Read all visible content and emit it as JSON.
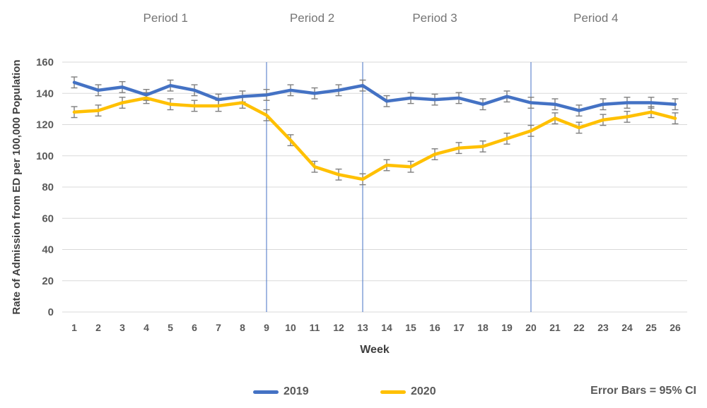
{
  "chart_data": {
    "type": "line",
    "title": "",
    "xlabel": "Week",
    "ylabel": "Rate of Admission from ED per 100,000 Population",
    "x": [
      1,
      2,
      3,
      4,
      5,
      6,
      7,
      8,
      9,
      10,
      11,
      12,
      13,
      14,
      15,
      16,
      17,
      18,
      19,
      20,
      21,
      22,
      23,
      24,
      25,
      26
    ],
    "ylim": [
      0,
      160
    ],
    "ytick_step": 20,
    "grid": true,
    "series": [
      {
        "name": "2019",
        "color": "#4472C4",
        "ci": 3.5,
        "values": [
          147,
          142,
          144,
          139,
          145,
          142,
          136,
          138,
          139,
          142,
          140,
          142,
          145,
          135,
          137,
          136,
          137,
          133,
          138,
          134,
          133,
          129,
          133,
          134,
          134,
          133
        ]
      },
      {
        "name": "2020",
        "color": "#FFC000",
        "ci": 3.5,
        "values": [
          128,
          129,
          134,
          137,
          133,
          132,
          132,
          134,
          126,
          110,
          93,
          88,
          85,
          94,
          93,
          101,
          105,
          106,
          111,
          116,
          124,
          118,
          123,
          125,
          128,
          124
        ]
      }
    ],
    "dividers": {
      "weeks": [
        9,
        13,
        20
      ],
      "color": "#4472C4"
    },
    "periods": [
      {
        "label": "Period 1",
        "week_start": 1,
        "week_end": 9,
        "center_week": 4.8
      },
      {
        "label": "Period 2",
        "week_start": 9,
        "week_end": 13,
        "center_week": 10.9
      },
      {
        "label": "Period 3",
        "week_start": 13,
        "week_end": 20,
        "center_week": 16.0
      },
      {
        "label": "Period 4",
        "week_start": 20,
        "week_end": 26,
        "center_week": 22.7
      }
    ],
    "legend": {
      "position": "bottom",
      "error_note": "Error Bars = 95% CI"
    },
    "colors": {
      "gridline": "#D9D9D9",
      "axis_text": "#595959",
      "period_text": "#757575",
      "error_bar": "#7F7F7F",
      "background": "#FFFFFF"
    }
  }
}
